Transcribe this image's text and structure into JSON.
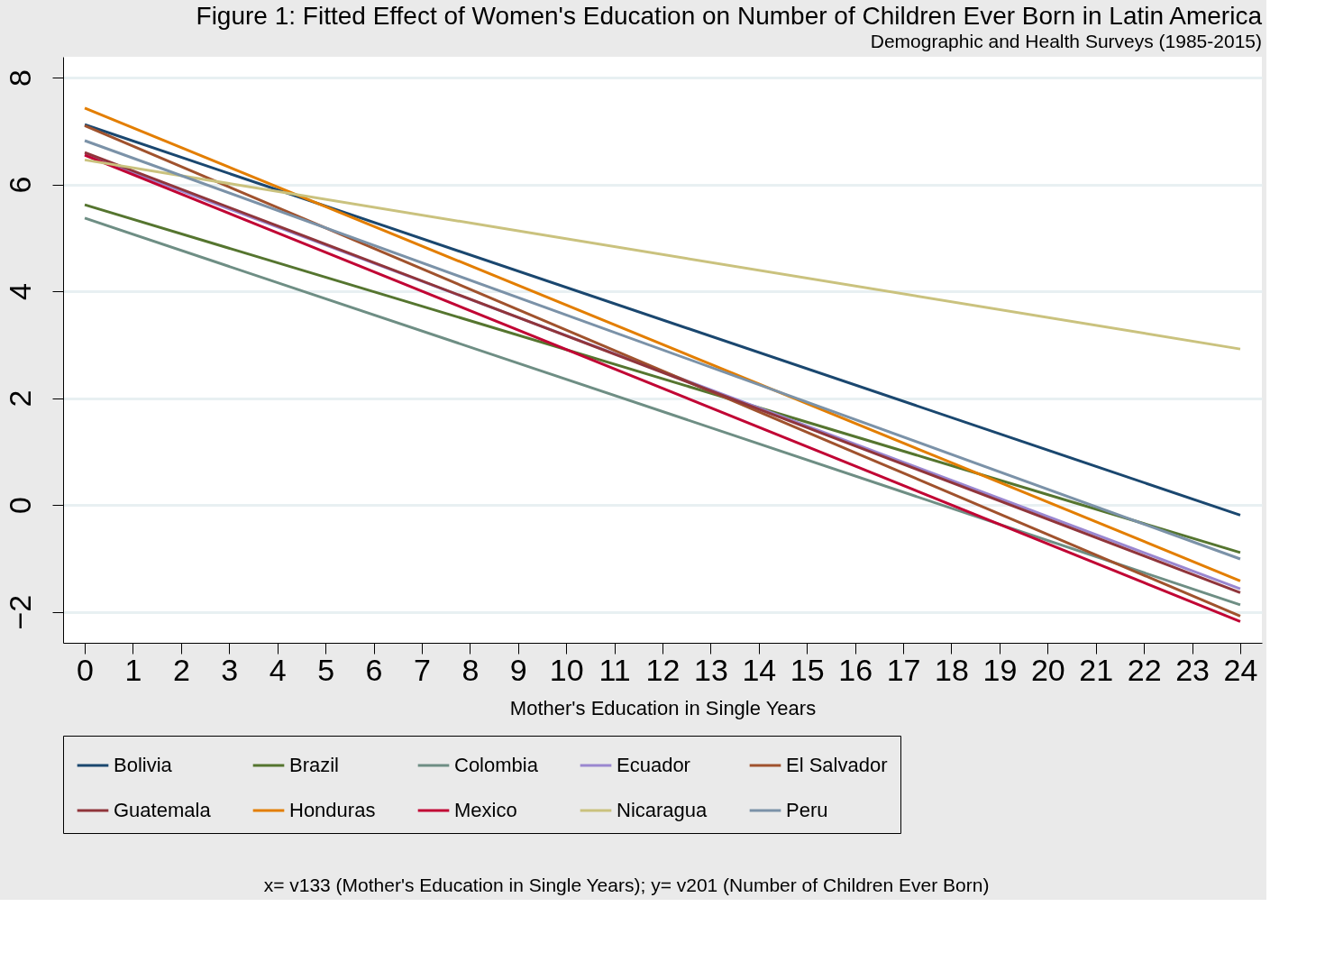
{
  "chart_data": {
    "type": "line",
    "title": "Figure 1: Fitted Effect of Women's Education on Number of Children Ever Born in Latin America",
    "subtitle": "Demographic and Health Surveys (1985-2015)",
    "xlabel": "Mother's Education in Single Years",
    "x": [
      0,
      24
    ],
    "series": [
      {
        "name": "Bolivia",
        "color": "#1a476f",
        "values": [
          7.12,
          -0.19
        ]
      },
      {
        "name": "Brazil",
        "color": "#55752f",
        "values": [
          5.62,
          -0.89
        ]
      },
      {
        "name": "Colombia",
        "color": "#6e8e84",
        "values": [
          5.37,
          -1.87
        ]
      },
      {
        "name": "Ecuador",
        "color": "#9a87d0",
        "values": [
          6.56,
          -1.57
        ]
      },
      {
        "name": "El Salvador",
        "color": "#a0522d",
        "values": [
          7.1,
          -2.08
        ]
      },
      {
        "name": "Guatemala",
        "color": "#90353b",
        "values": [
          6.6,
          -1.64
        ]
      },
      {
        "name": "Honduras",
        "color": "#e37e00",
        "values": [
          7.43,
          -1.42
        ]
      },
      {
        "name": "Mexico",
        "color": "#c10534",
        "values": [
          6.55,
          -2.18
        ]
      },
      {
        "name": "Nicaragua",
        "color": "#cac27e",
        "values": [
          6.46,
          2.92
        ]
      },
      {
        "name": "Peru",
        "color": "#7b92a8",
        "values": [
          6.82,
          -1.01
        ]
      }
    ],
    "xlim": [
      -0.45,
      24.45
    ],
    "xticks": [
      0,
      1,
      2,
      3,
      4,
      5,
      6,
      7,
      8,
      9,
      10,
      11,
      12,
      13,
      14,
      15,
      16,
      17,
      18,
      19,
      20,
      21,
      22,
      23,
      24
    ],
    "ylim": [
      -2.58,
      8.39
    ],
    "yticks": [
      -2,
      0,
      2,
      4,
      6,
      8
    ],
    "grid": "y",
    "legend": "bottom",
    "marker": "none",
    "line_style": "solid",
    "annotations": [
      "x= v133 (Mother's Education in Single Years); y= v201 (Number of Children Ever Born)"
    ]
  }
}
